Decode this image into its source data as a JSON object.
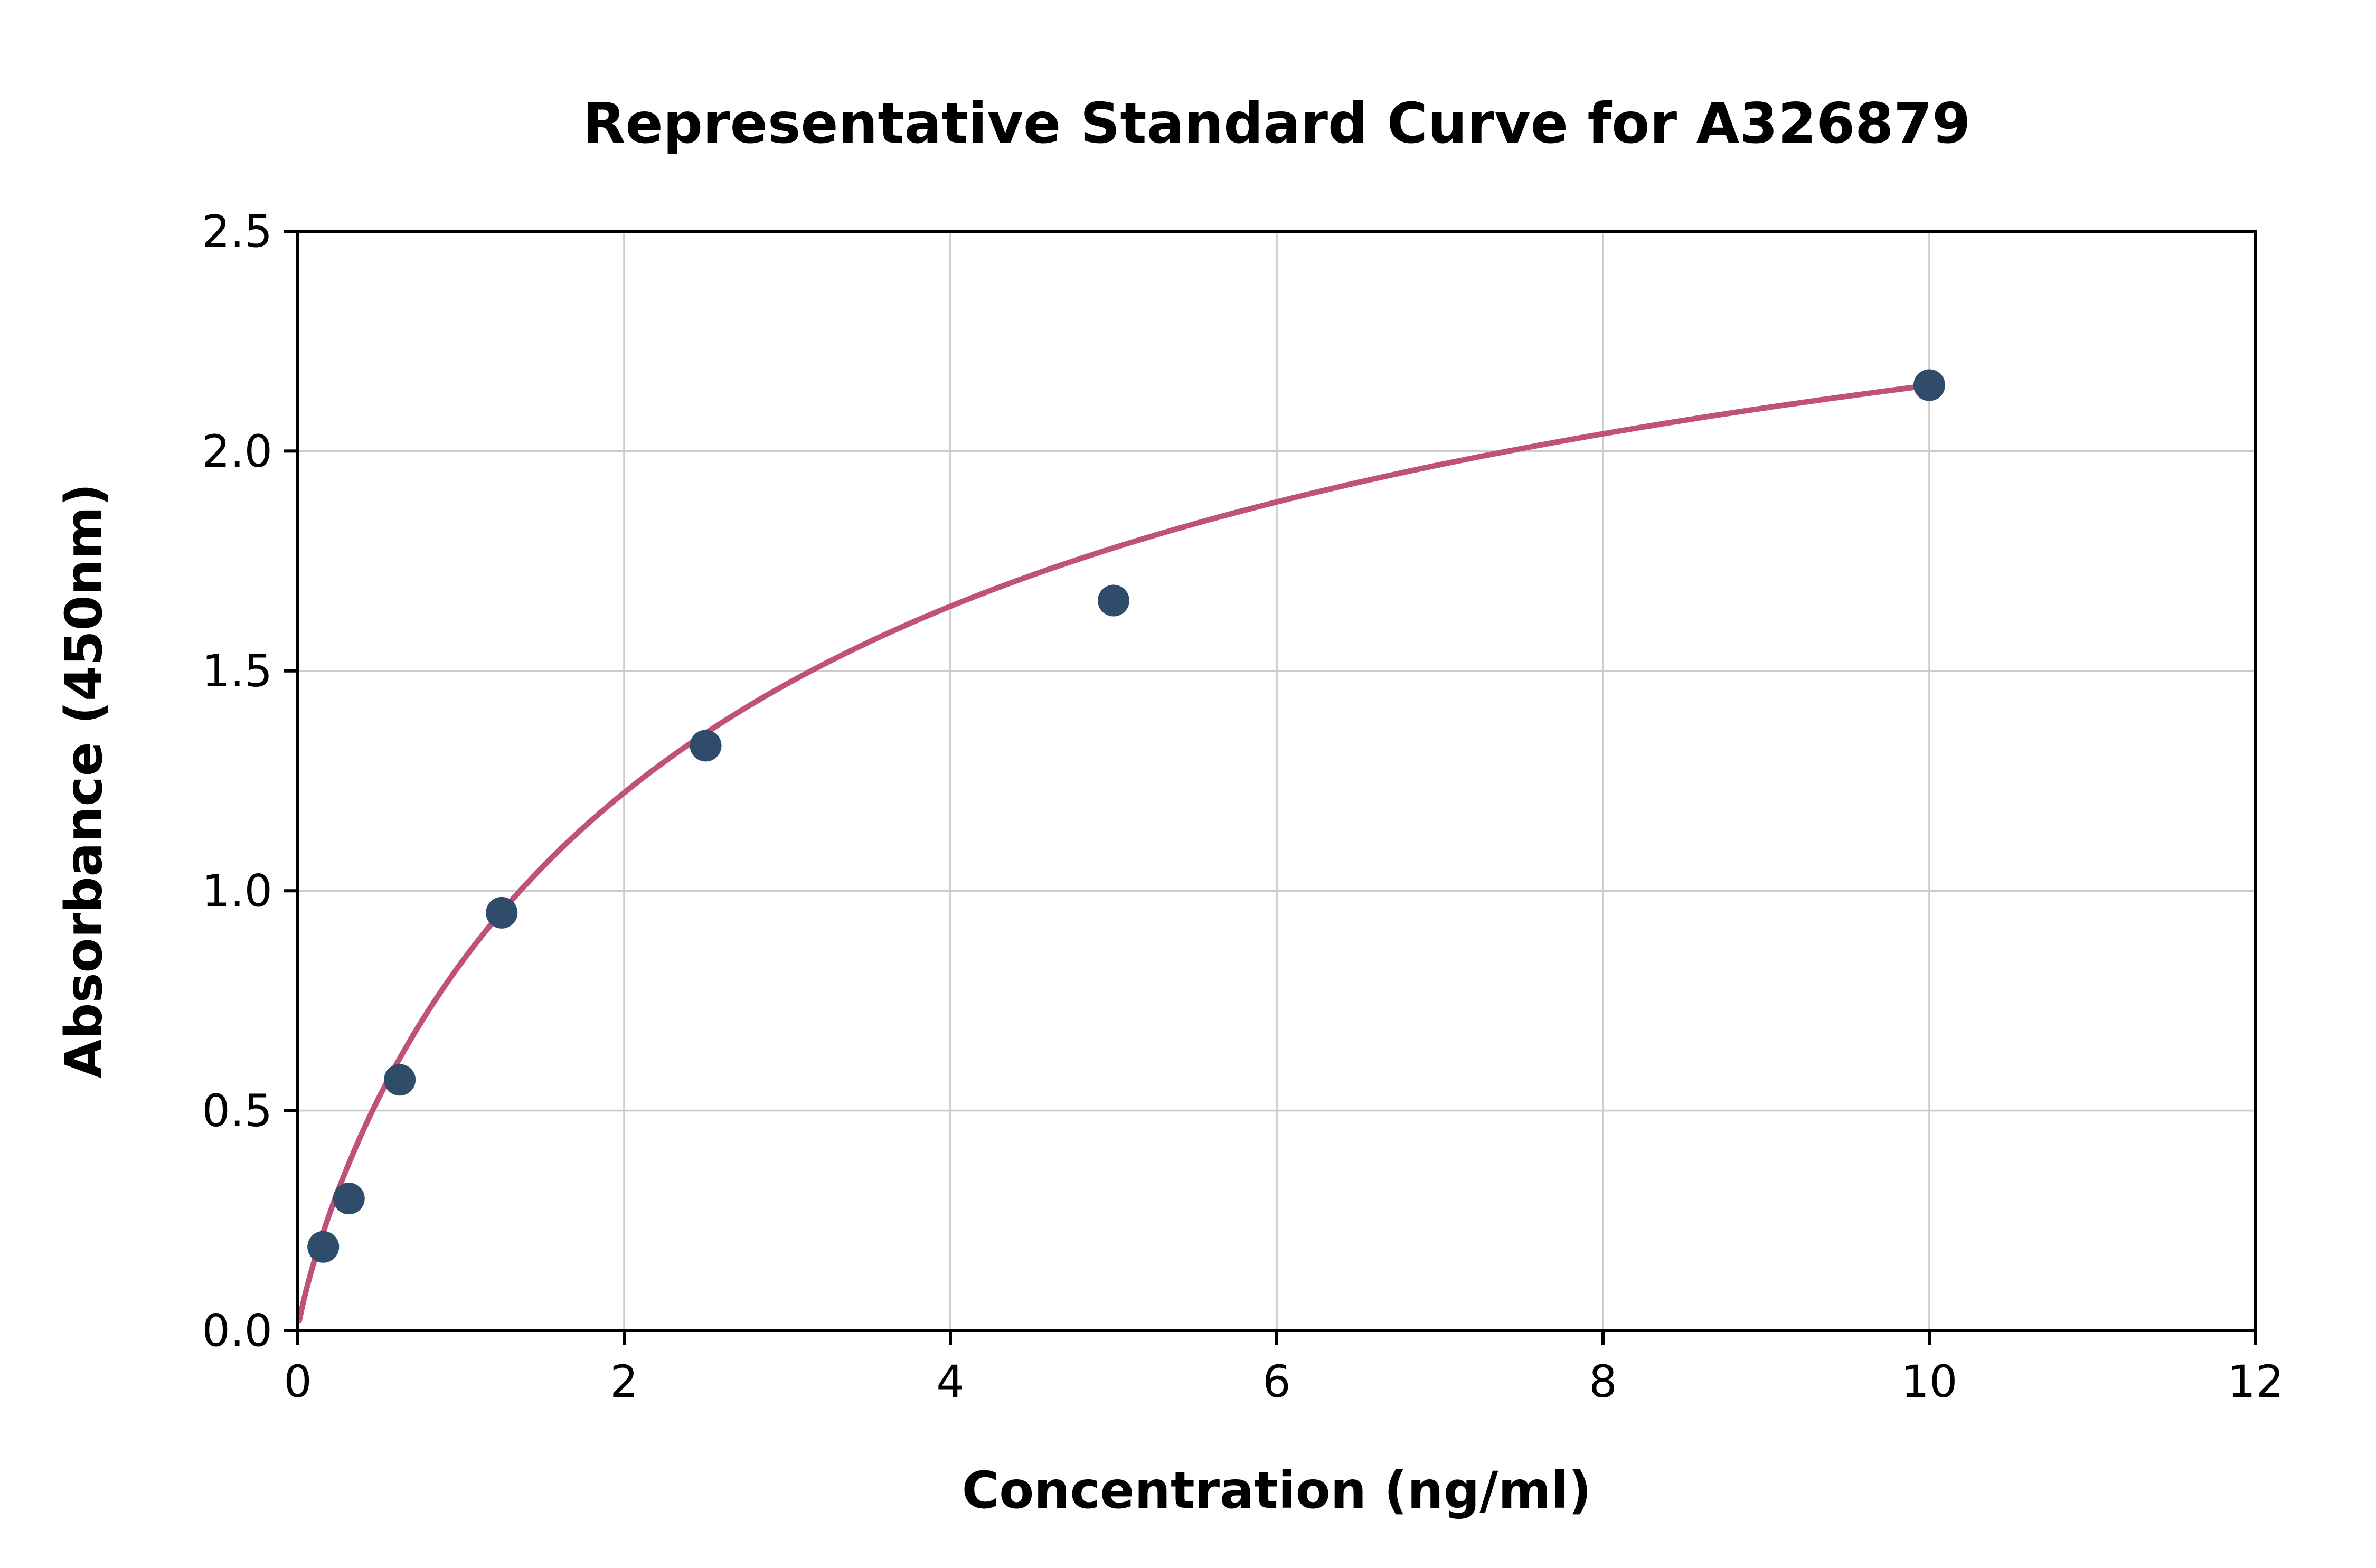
{
  "chart_data": {
    "type": "scatter",
    "title": "Representative Standard Curve for A326879",
    "xlabel": "Concentration (ng/ml)",
    "ylabel": "Absorbance (450nm)",
    "xlim": [
      0,
      12
    ],
    "ylim": [
      0,
      2.5
    ],
    "xticks": [
      0,
      2,
      4,
      6,
      8,
      10,
      12
    ],
    "yticks": [
      0.0,
      0.5,
      1.0,
      1.5,
      2.0,
      2.5
    ],
    "grid": true,
    "legend": "none",
    "points": [
      {
        "x": 0.156,
        "y": 0.19
      },
      {
        "x": 0.313,
        "y": 0.3
      },
      {
        "x": 0.625,
        "y": 0.57
      },
      {
        "x": 1.25,
        "y": 0.95
      },
      {
        "x": 2.5,
        "y": 1.33
      },
      {
        "x": 5.0,
        "y": 1.66
      },
      {
        "x": 10.0,
        "y": 2.15
      }
    ],
    "point_color": "#2f4d6b",
    "curve_color": "#c0517c",
    "grid_color": "#cccccc",
    "axis_color": "#000000",
    "fit_curve": {
      "model": "4PL",
      "a": 0.0,
      "d": 2.9,
      "c": 2.9,
      "b": 0.85,
      "x_min": 0.01,
      "x_max": 10.05
    }
  }
}
